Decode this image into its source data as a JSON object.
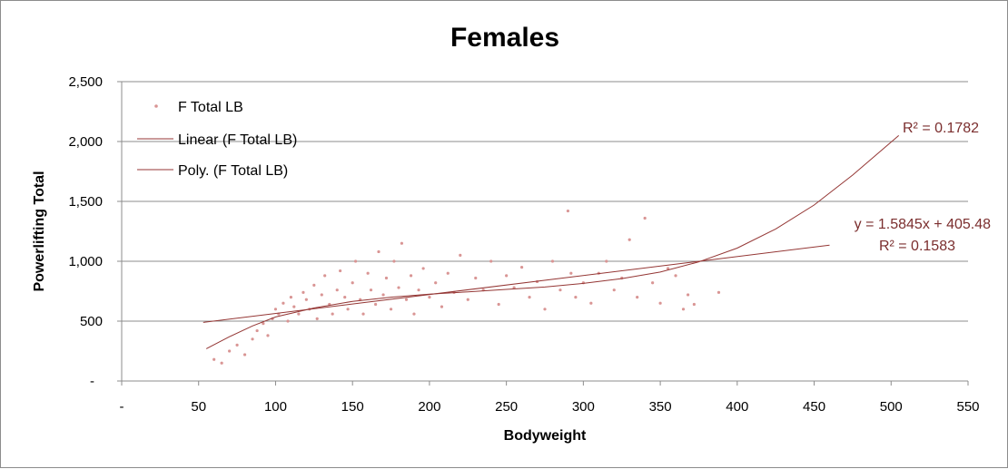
{
  "chart_data": {
    "type": "scatter",
    "title": "Females",
    "xlabel": "Bodyweight",
    "ylabel": "Powerlifting Total",
    "xlim": [
      0,
      550
    ],
    "ylim": [
      0,
      2500
    ],
    "x_ticks": [
      0,
      50,
      100,
      150,
      200,
      250,
      300,
      350,
      400,
      450,
      500,
      550
    ],
    "x_tick_labels": [
      "-",
      "50",
      "100",
      "150",
      "200",
      "250",
      "300",
      "350",
      "400",
      "450",
      "500",
      "550"
    ],
    "y_ticks": [
      0,
      500,
      1000,
      1500,
      2000,
      2500
    ],
    "y_tick_labels": [
      "-",
      "500",
      "1,000",
      "1,500",
      "2,000",
      "2,500"
    ],
    "grid": "horizontal",
    "legend_position": "top-left",
    "series": [
      {
        "name": "F Total LB",
        "kind": "scatter",
        "color": "#d99594",
        "points": [
          [
            60,
            180
          ],
          [
            65,
            150
          ],
          [
            70,
            250
          ],
          [
            75,
            300
          ],
          [
            80,
            220
          ],
          [
            85,
            350
          ],
          [
            88,
            420
          ],
          [
            92,
            480
          ],
          [
            95,
            380
          ],
          [
            98,
            520
          ],
          [
            100,
            600
          ],
          [
            102,
            560
          ],
          [
            105,
            650
          ],
          [
            108,
            500
          ],
          [
            110,
            700
          ],
          [
            112,
            620
          ],
          [
            115,
            560
          ],
          [
            118,
            740
          ],
          [
            120,
            680
          ],
          [
            122,
            600
          ],
          [
            125,
            800
          ],
          [
            127,
            520
          ],
          [
            130,
            720
          ],
          [
            132,
            880
          ],
          [
            135,
            640
          ],
          [
            137,
            560
          ],
          [
            140,
            760
          ],
          [
            142,
            920
          ],
          [
            145,
            700
          ],
          [
            147,
            600
          ],
          [
            150,
            820
          ],
          [
            152,
            1000
          ],
          [
            155,
            680
          ],
          [
            157,
            560
          ],
          [
            160,
            900
          ],
          [
            162,
            760
          ],
          [
            165,
            640
          ],
          [
            167,
            1080
          ],
          [
            170,
            720
          ],
          [
            172,
            860
          ],
          [
            175,
            600
          ],
          [
            177,
            1000
          ],
          [
            180,
            780
          ],
          [
            182,
            1150
          ],
          [
            185,
            680
          ],
          [
            188,
            880
          ],
          [
            190,
            560
          ],
          [
            193,
            760
          ],
          [
            196,
            940
          ],
          [
            200,
            700
          ],
          [
            204,
            820
          ],
          [
            208,
            620
          ],
          [
            212,
            900
          ],
          [
            216,
            740
          ],
          [
            220,
            1050
          ],
          [
            225,
            680
          ],
          [
            230,
            860
          ],
          [
            235,
            760
          ],
          [
            240,
            1000
          ],
          [
            245,
            640
          ],
          [
            250,
            880
          ],
          [
            255,
            780
          ],
          [
            260,
            950
          ],
          [
            265,
            700
          ],
          [
            270,
            830
          ],
          [
            275,
            600
          ],
          [
            280,
            1000
          ],
          [
            285,
            760
          ],
          [
            290,
            1420
          ],
          [
            292,
            900
          ],
          [
            295,
            700
          ],
          [
            300,
            820
          ],
          [
            305,
            650
          ],
          [
            310,
            900
          ],
          [
            315,
            1000
          ],
          [
            320,
            760
          ],
          [
            325,
            860
          ],
          [
            330,
            1180
          ],
          [
            335,
            700
          ],
          [
            340,
            1360
          ],
          [
            345,
            820
          ],
          [
            350,
            650
          ],
          [
            355,
            940
          ],
          [
            360,
            880
          ],
          [
            365,
            600
          ],
          [
            368,
            720
          ],
          [
            372,
            640
          ],
          [
            388,
            740
          ]
        ]
      },
      {
        "name": "Linear (F Total LB)",
        "kind": "line",
        "color": "#943634",
        "equation": "y = 1.5845x + 405.48",
        "r2": "R² = 0.1583",
        "slope": 1.5845,
        "intercept": 405.48,
        "x_range": [
          53,
          460
        ]
      },
      {
        "name": "Poly. (F Total LB)",
        "kind": "line",
        "color": "#943634",
        "r2": "R² = 0.1782",
        "points": [
          [
            55,
            270
          ],
          [
            70,
            370
          ],
          [
            85,
            460
          ],
          [
            100,
            535
          ],
          [
            125,
            610
          ],
          [
            150,
            665
          ],
          [
            175,
            700
          ],
          [
            200,
            725
          ],
          [
            225,
            745
          ],
          [
            250,
            765
          ],
          [
            275,
            785
          ],
          [
            300,
            815
          ],
          [
            325,
            855
          ],
          [
            350,
            910
          ],
          [
            375,
            995
          ],
          [
            400,
            1110
          ],
          [
            425,
            1270
          ],
          [
            450,
            1470
          ],
          [
            475,
            1720
          ],
          [
            505,
            2050
          ]
        ]
      }
    ]
  }
}
